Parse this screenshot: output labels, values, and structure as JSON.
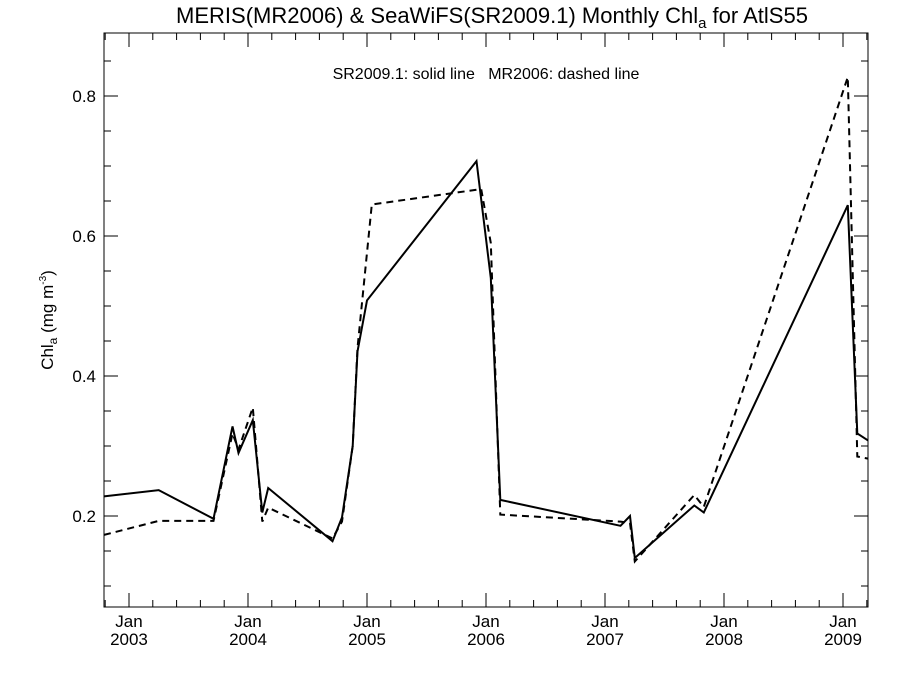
{
  "chart_data": {
    "type": "line",
    "title": "MERIS(MR2006) & SeaWiFS(SR2009.1) Monthly Chl",
    "title_subscript": "a",
    "title_suffix": " for AtlS55",
    "legend_text": "SR2009.1: solid line   MR2006: dashed line",
    "ylabel_main": "Chl",
    "ylabel_subscript": "a",
    "ylabel_unit_prefix": " (mg m",
    "ylabel_unit_superscript": "-3",
    "ylabel_unit_suffix": ")",
    "ylim": [
      0.07,
      0.89
    ],
    "xlim": [
      2002.79,
      2009.21
    ],
    "grid": false,
    "y_ticks": [
      {
        "value": 0.2,
        "label": "0.2"
      },
      {
        "value": 0.4,
        "label": "0.4"
      },
      {
        "value": 0.6,
        "label": "0.6"
      },
      {
        "value": 0.8,
        "label": "0.8"
      }
    ],
    "x_ticks": [
      {
        "value": 2003.0,
        "month": "Jan",
        "year": "2003"
      },
      {
        "value": 2004.0,
        "month": "Jan",
        "year": "2004"
      },
      {
        "value": 2005.0,
        "month": "Jan",
        "year": "2005"
      },
      {
        "value": 2006.0,
        "month": "Jan",
        "year": "2006"
      },
      {
        "value": 2007.0,
        "month": "Jan",
        "year": "2007"
      },
      {
        "value": 2008.0,
        "month": "Jan",
        "year": "2008"
      },
      {
        "value": 2009.0,
        "month": "Jan",
        "year": "2009"
      }
    ],
    "series": [
      {
        "name": "SR2009.1",
        "style": "solid",
        "color": "#000000",
        "points": [
          [
            2002.79,
            0.228
          ],
          [
            2003.25,
            0.237
          ],
          [
            2003.71,
            0.196
          ],
          [
            2003.87,
            0.328
          ],
          [
            2003.92,
            0.29
          ],
          [
            2004.04,
            0.337
          ],
          [
            2004.12,
            0.205
          ],
          [
            2004.17,
            0.24
          ],
          [
            2004.71,
            0.164
          ],
          [
            2004.79,
            0.198
          ],
          [
            2004.88,
            0.3
          ],
          [
            2004.92,
            0.435
          ],
          [
            2005.0,
            0.508
          ],
          [
            2005.92,
            0.707
          ],
          [
            2006.04,
            0.54
          ],
          [
            2006.12,
            0.223
          ],
          [
            2007.13,
            0.186
          ],
          [
            2007.21,
            0.2
          ],
          [
            2007.25,
            0.14
          ],
          [
            2007.75,
            0.215
          ],
          [
            2007.83,
            0.205
          ],
          [
            2009.04,
            0.644
          ],
          [
            2009.12,
            0.318
          ],
          [
            2009.21,
            0.308
          ]
        ]
      },
      {
        "name": "MR2006",
        "style": "dashed",
        "color": "#000000",
        "points": [
          [
            2002.79,
            0.173
          ],
          [
            2003.25,
            0.193
          ],
          [
            2003.71,
            0.193
          ],
          [
            2003.87,
            0.318
          ],
          [
            2003.92,
            0.295
          ],
          [
            2004.04,
            0.355
          ],
          [
            2004.12,
            0.192
          ],
          [
            2004.17,
            0.212
          ],
          [
            2004.71,
            0.168
          ],
          [
            2004.79,
            0.192
          ],
          [
            2004.88,
            0.3
          ],
          [
            2004.92,
            0.44
          ],
          [
            2005.04,
            0.645
          ],
          [
            2005.96,
            0.667
          ],
          [
            2006.04,
            0.59
          ],
          [
            2006.12,
            0.202
          ],
          [
            2007.13,
            0.192
          ],
          [
            2007.21,
            0.19
          ],
          [
            2007.25,
            0.135
          ],
          [
            2007.75,
            0.23
          ],
          [
            2007.83,
            0.213
          ],
          [
            2009.04,
            0.827
          ],
          [
            2009.12,
            0.285
          ],
          [
            2009.21,
            0.282
          ]
        ]
      }
    ]
  }
}
